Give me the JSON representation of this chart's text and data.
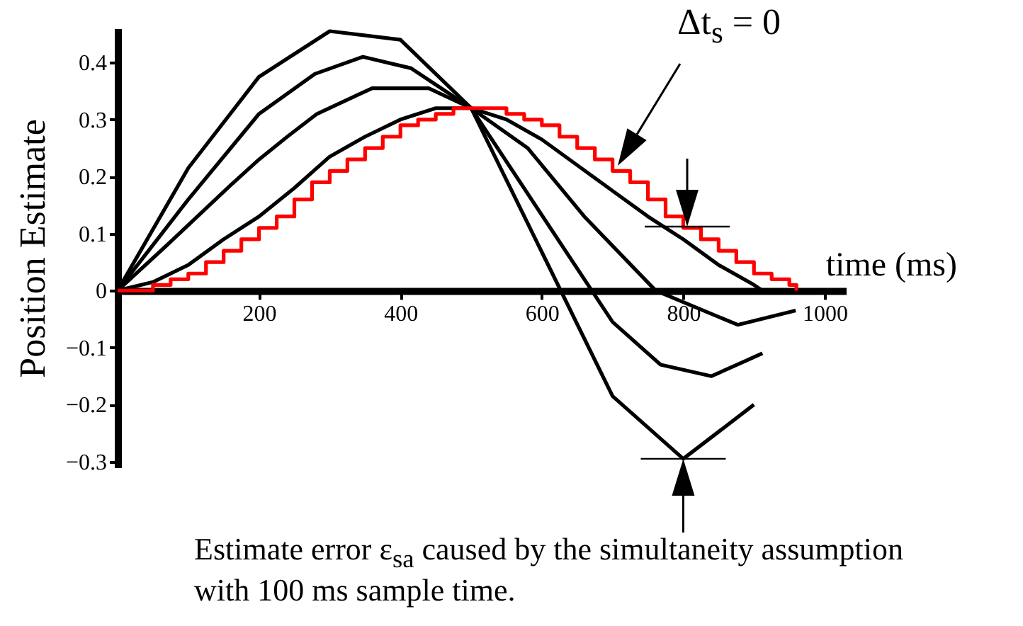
{
  "chart_data": {
    "type": "line",
    "ylabel": "Position Estimate",
    "xlabel": "time (ms)",
    "annotations": [
      "Δt$_{s}$ = 0",
      {
        "text": "Estimate error ε$_{sa}$ caused by the simultaneity assumption with 100 ms sample time.",
        "x": 800,
        "y": -0.295
      }
    ],
    "xlim": [
      0,
      1030
    ],
    "ylim": [
      -0.31,
      0.46
    ],
    "xticks": [
      {
        "value": 0,
        "label": null
      },
      200,
      400,
      600,
      800,
      {
        "value": 1000,
        "label": "1000"
      }
    ],
    "yticks": [
      -0.3,
      -0.2,
      -0.1,
      {
        "value": 0,
        "label": "0"
      },
      0.1,
      0.2,
      0.3,
      0.4
    ],
    "grid": false,
    "marker": "none",
    "line_style": "solid",
    "series": [
      {
        "color": "#000000",
        "x": [
          0,
          100,
          200,
          300,
          400,
          500,
          700,
          800,
          900
        ],
        "values": [
          0,
          0.215,
          0.375,
          0.455,
          0.44,
          0.32,
          -0.185,
          -0.295,
          -0.2
        ]
      },
      {
        "color": "#000000",
        "x": [
          0,
          100,
          200,
          279,
          347,
          415,
          500,
          700,
          768,
          840,
          912
        ],
        "values": [
          0,
          0.16,
          0.31,
          0.38,
          0.41,
          0.39,
          0.32,
          -0.055,
          -0.13,
          -0.15,
          -0.11
        ]
      },
      {
        "color": "#000000",
        "x": [
          0,
          70,
          160,
          200,
          240,
          282,
          360,
          440,
          500,
          580,
          660,
          761,
          877,
          959
        ],
        "values": [
          0,
          0.08,
          0.185,
          0.23,
          0.27,
          0.31,
          0.355,
          0.355,
          0.32,
          0.25,
          0.13,
          0,
          -0.06,
          -0.035
        ]
      },
      {
        "color": "#000000",
        "x": [
          0,
          50,
          100,
          150,
          200,
          250,
          300,
          350,
          400,
          450,
          500,
          550,
          600,
          650,
          700,
          750,
          800,
          850,
          900,
          912
        ],
        "values": [
          0,
          0.015,
          0.045,
          0.09,
          0.13,
          0.18,
          0.235,
          0.27,
          0.3,
          0.32,
          0.32,
          0.3,
          0.265,
          0.22,
          0.175,
          0.13,
          0.09,
          0.045,
          0.01,
          0
        ]
      },
      {
        "type": "step",
        "color": "#ff0000",
        "x": [
          0,
          25,
          50,
          75,
          100,
          125,
          150,
          175,
          200,
          225,
          250,
          275,
          300,
          325,
          350,
          375,
          400,
          425,
          450,
          475,
          500,
          525,
          550,
          575,
          600,
          625,
          650,
          675,
          700,
          725,
          750,
          775,
          800,
          825,
          850,
          875,
          900,
          925,
          950,
          960
        ],
        "values": [
          0,
          0,
          0.01,
          0.02,
          0.03,
          0.05,
          0.07,
          0.09,
          0.11,
          0.13,
          0.16,
          0.19,
          0.21,
          0.23,
          0.25,
          0.27,
          0.29,
          0.3,
          0.31,
          0.32,
          0.32,
          0.32,
          0.31,
          0.3,
          0.29,
          0.27,
          0.25,
          0.23,
          0.21,
          0.19,
          0.16,
          0.13,
          0.11,
          0.09,
          0.07,
          0.05,
          0.03,
          0.02,
          0.01,
          0
        ]
      }
    ]
  }
}
